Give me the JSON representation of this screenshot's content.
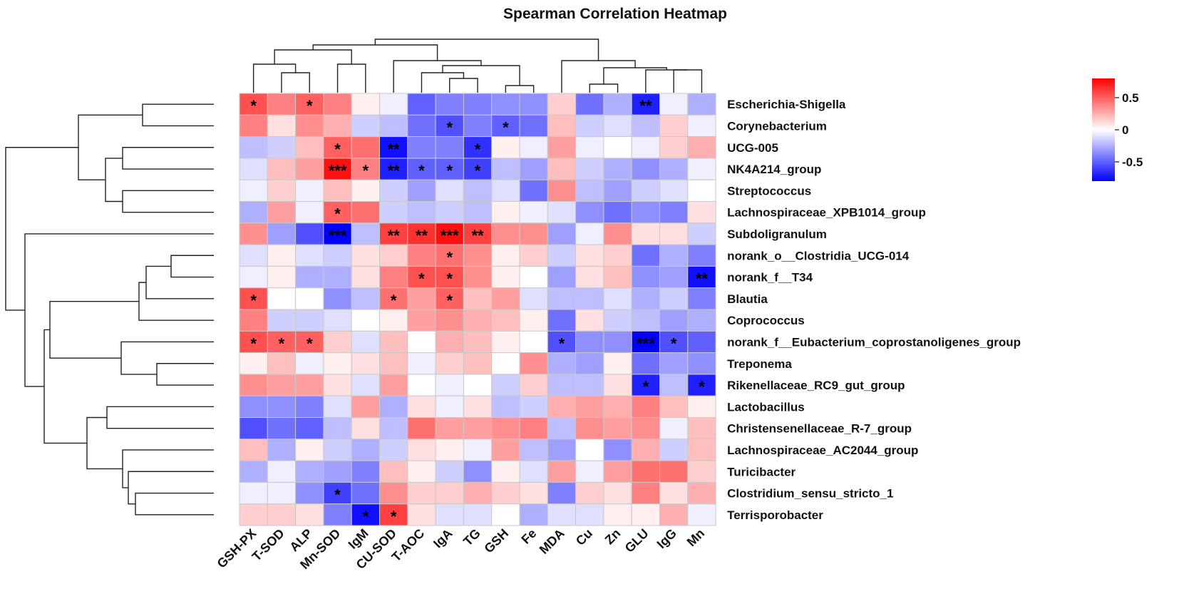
{
  "chart_data": {
    "type": "heatmap",
    "title": "Spearman Correlation Heatmap",
    "columns": [
      "GSH-PX",
      "T-SOD",
      "ALP",
      "Mn-SOD",
      "IgM",
      "CU-SOD",
      "T-AOC",
      "IgA",
      "TG",
      "GSH",
      "Fe",
      "MDA",
      "Cu",
      "Zn",
      "GLU",
      "IgG",
      "Mn"
    ],
    "rows": [
      "Escherichia-Shigella",
      "Corynebacterium",
      "UCG-005",
      "NK4A214_group",
      "Streptococcus",
      "Lachnospiraceae_XPB1014_group",
      "Subdoligranulum",
      "norank_o__Clostridia_UCG-014",
      "norank_f__T34",
      "Blautia",
      "Coprococcus",
      "norank_f__Eubacterium_coprostanoligenes_group",
      "Treponema",
      "Rikenellaceae_RC9_gut_group",
      "Lactobacillus",
      "Christensenellaceae_R-7_group",
      "Lachnospiraceae_AC2044_group",
      "Turicibacter",
      "Clostridium_sensu_stricto_1",
      "Terrisporobacter"
    ],
    "values": [
      [
        0.55,
        0.4,
        0.5,
        0.4,
        0.05,
        -0.05,
        -0.5,
        -0.4,
        -0.4,
        -0.35,
        -0.35,
        0.15,
        -0.45,
        -0.25,
        -0.7,
        -0.05,
        -0.25
      ],
      [
        0.4,
        0.1,
        0.35,
        0.25,
        -0.15,
        -0.2,
        -0.45,
        -0.55,
        -0.4,
        -0.5,
        -0.45,
        0.2,
        -0.15,
        -0.1,
        -0.2,
        0.15,
        -0.05
      ],
      [
        -0.2,
        -0.15,
        0.2,
        0.5,
        0.45,
        -0.75,
        -0.4,
        -0.4,
        -0.65,
        0.05,
        -0.05,
        0.3,
        -0.05,
        0.0,
        -0.05,
        0.15,
        0.25
      ],
      [
        -0.1,
        0.2,
        0.3,
        0.75,
        0.4,
        -0.7,
        -0.5,
        -0.5,
        -0.6,
        -0.2,
        -0.3,
        0.2,
        -0.15,
        -0.25,
        -0.35,
        -0.25,
        -0.05
      ],
      [
        -0.05,
        0.15,
        -0.05,
        0.2,
        0.05,
        -0.15,
        -0.3,
        -0.1,
        -0.2,
        -0.1,
        -0.45,
        0.35,
        -0.2,
        -0.3,
        -0.15,
        -0.1,
        0.0
      ],
      [
        -0.25,
        0.3,
        -0.05,
        0.5,
        0.45,
        -0.15,
        -0.2,
        -0.15,
        -0.2,
        0.05,
        -0.05,
        -0.1,
        -0.35,
        -0.45,
        -0.35,
        -0.4,
        0.1
      ],
      [
        0.35,
        -0.3,
        -0.55,
        -0.8,
        -0.2,
        0.6,
        0.65,
        0.75,
        0.6,
        0.35,
        0.35,
        -0.3,
        -0.05,
        0.35,
        0.1,
        0.1,
        -0.15
      ],
      [
        -0.1,
        0.05,
        -0.1,
        -0.15,
        0.1,
        0.15,
        0.4,
        0.45,
        0.35,
        0.05,
        0.15,
        -0.15,
        0.1,
        0.15,
        -0.45,
        -0.25,
        -0.4
      ],
      [
        -0.05,
        0.05,
        -0.25,
        -0.25,
        0.1,
        0.4,
        0.55,
        0.55,
        0.35,
        0.05,
        0.0,
        -0.3,
        0.1,
        0.2,
        -0.35,
        -0.3,
        -0.75
      ],
      [
        0.55,
        0.0,
        0.0,
        -0.35,
        -0.2,
        0.45,
        0.3,
        0.5,
        0.2,
        0.3,
        -0.1,
        -0.2,
        -0.2,
        -0.1,
        -0.25,
        -0.15,
        -0.4
      ],
      [
        0.4,
        -0.15,
        -0.15,
        -0.1,
        0.0,
        0.05,
        0.3,
        0.35,
        0.25,
        0.2,
        0.05,
        -0.45,
        0.1,
        -0.15,
        -0.2,
        -0.3,
        -0.25
      ],
      [
        0.55,
        0.5,
        0.5,
        0.15,
        -0.1,
        0.2,
        0.0,
        0.25,
        0.2,
        0.05,
        0.0,
        -0.55,
        -0.35,
        -0.35,
        -0.8,
        -0.55,
        -0.5
      ],
      [
        0.05,
        0.2,
        -0.05,
        0.05,
        0.1,
        0.2,
        -0.05,
        0.15,
        0.2,
        0.0,
        0.35,
        -0.25,
        -0.3,
        0.05,
        -0.45,
        -0.3,
        -0.35
      ],
      [
        0.35,
        0.3,
        0.3,
        0.1,
        -0.1,
        0.3,
        0.0,
        -0.05,
        0.0,
        -0.15,
        0.15,
        -0.2,
        -0.2,
        0.1,
        -0.7,
        -0.2,
        -0.7
      ],
      [
        -0.35,
        -0.35,
        -0.4,
        -0.1,
        0.3,
        -0.25,
        0.1,
        -0.05,
        0.1,
        -0.2,
        -0.15,
        0.25,
        0.3,
        0.25,
        0.4,
        0.2,
        0.05
      ],
      [
        -0.55,
        -0.45,
        -0.5,
        -0.2,
        0.1,
        -0.2,
        0.45,
        0.3,
        0.3,
        0.35,
        0.4,
        -0.2,
        0.35,
        0.3,
        0.35,
        -0.05,
        0.2
      ],
      [
        0.2,
        -0.25,
        0.05,
        -0.15,
        -0.25,
        -0.15,
        0.1,
        0.05,
        -0.05,
        0.3,
        -0.2,
        -0.3,
        0.0,
        -0.35,
        0.25,
        -0.15,
        0.2
      ],
      [
        -0.25,
        -0.05,
        -0.25,
        -0.3,
        -0.4,
        0.2,
        0.05,
        -0.15,
        -0.35,
        0.05,
        -0.1,
        0.3,
        -0.05,
        0.3,
        0.45,
        0.45,
        0.15
      ],
      [
        -0.05,
        -0.05,
        -0.35,
        -0.6,
        -0.45,
        0.35,
        0.15,
        0.15,
        0.25,
        0.15,
        0.1,
        -0.4,
        0.15,
        0.1,
        0.4,
        0.1,
        0.25
      ],
      [
        0.15,
        0.15,
        0.1,
        -0.4,
        -0.75,
        0.6,
        0.1,
        -0.1,
        -0.1,
        0.0,
        -0.25,
        -0.1,
        -0.1,
        0.05,
        0.05,
        0.25,
        -0.05
      ]
    ],
    "significance": [
      [
        "*",
        "",
        "*",
        "",
        "",
        "",
        "",
        "",
        "",
        "",
        "",
        "",
        "",
        "",
        "**",
        "",
        ""
      ],
      [
        "",
        "",
        "",
        "",
        "",
        "",
        "",
        "*",
        "",
        "*",
        "",
        "",
        "",
        "",
        "",
        "",
        ""
      ],
      [
        "",
        "",
        "",
        "*",
        "",
        "**",
        "",
        "",
        "*",
        "",
        "",
        "",
        "",
        "",
        "",
        "",
        ""
      ],
      [
        "",
        "",
        "",
        "***",
        "*",
        "**",
        "*",
        "*",
        "*",
        "",
        "",
        "",
        "",
        "",
        "",
        "",
        ""
      ],
      [
        "",
        "",
        "",
        "",
        "",
        "",
        "",
        "",
        "",
        "",
        "",
        "",
        "",
        "",
        "",
        "",
        ""
      ],
      [
        "",
        "",
        "",
        "*",
        "",
        "",
        "",
        "",
        "",
        "",
        "",
        "",
        "",
        "",
        "",
        "",
        ""
      ],
      [
        "",
        "",
        "",
        "***",
        "",
        "**",
        "**",
        "***",
        "**",
        "",
        "",
        "",
        "",
        "",
        "",
        "",
        ""
      ],
      [
        "",
        "",
        "",
        "",
        "",
        "",
        "",
        "*",
        "",
        "",
        "",
        "",
        "",
        "",
        "",
        "",
        ""
      ],
      [
        "",
        "",
        "",
        "",
        "",
        "",
        "*",
        "*",
        "",
        "",
        "",
        "",
        "",
        "",
        "",
        "",
        "**"
      ],
      [
        "*",
        "",
        "",
        "",
        "",
        "*",
        "",
        "*",
        "",
        "",
        "",
        "",
        "",
        "",
        "",
        "",
        ""
      ],
      [
        "",
        "",
        "",
        "",
        "",
        "",
        "",
        "",
        "",
        "",
        "",
        "",
        "",
        "",
        "",
        "",
        ""
      ],
      [
        "*",
        "*",
        "*",
        "",
        "",
        "",
        "",
        "",
        "",
        "",
        "",
        "*",
        "",
        "",
        "***",
        "*",
        ""
      ],
      [
        "",
        "",
        "",
        "",
        "",
        "",
        "",
        "",
        "",
        "",
        "",
        "",
        "",
        "",
        "",
        "",
        ""
      ],
      [
        "",
        "",
        "",
        "",
        "",
        "",
        "",
        "",
        "",
        "",
        "",
        "",
        "",
        "",
        "*",
        "",
        "*"
      ],
      [
        "",
        "",
        "",
        "",
        "",
        "",
        "",
        "",
        "",
        "",
        "",
        "",
        "",
        "",
        "",
        "",
        ""
      ],
      [
        "",
        "",
        "",
        "",
        "",
        "",
        "",
        "",
        "",
        "",
        "",
        "",
        "",
        "",
        "",
        "",
        ""
      ],
      [
        "",
        "",
        "",
        "",
        "",
        "",
        "",
        "",
        "",
        "",
        "",
        "",
        "",
        "",
        "",
        "",
        ""
      ],
      [
        "",
        "",
        "",
        "",
        "",
        "",
        "",
        "",
        "",
        "",
        "",
        "",
        "",
        "",
        "",
        "",
        ""
      ],
      [
        "",
        "",
        "",
        "*",
        "",
        "",
        "",
        "",
        "",
        "",
        "",
        "",
        "",
        "",
        "",
        "",
        ""
      ],
      [
        "",
        "",
        "",
        "",
        "*",
        "*",
        "",
        "",
        "",
        "",
        "",
        "",
        "",
        "",
        "",
        "",
        ""
      ]
    ],
    "color_scale": {
      "min": -0.8,
      "max": 0.8,
      "low": "#0000FF",
      "mid": "#FFFFFF",
      "high": "#FF0000"
    },
    "legend": {
      "ticks": [
        0.5,
        0,
        -0.5
      ],
      "tick_labels": [
        "0.5",
        "0",
        "-0.5"
      ],
      "position": "right"
    }
  }
}
